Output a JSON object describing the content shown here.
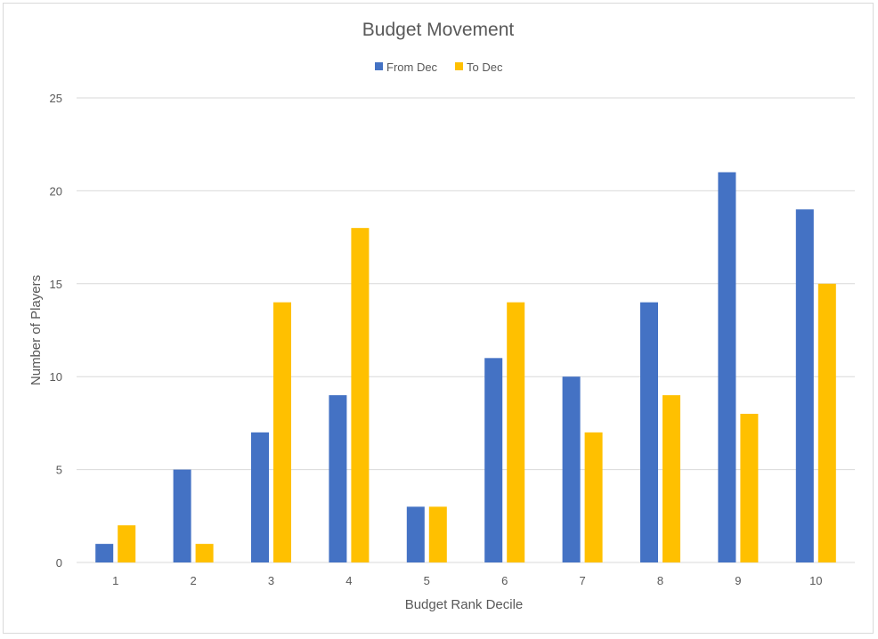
{
  "chart_data": {
    "type": "bar",
    "title": "Budget Movement",
    "xlabel": "Budget Rank Decile",
    "ylabel": "Number of Players",
    "categories": [
      "1",
      "2",
      "3",
      "4",
      "5",
      "6",
      "7",
      "8",
      "9",
      "10"
    ],
    "series": [
      {
        "name": "From Dec",
        "color": "#4472C4",
        "values": [
          1,
          5,
          7,
          9,
          3,
          11,
          10,
          14,
          21,
          19
        ]
      },
      {
        "name": "To Dec",
        "color": "#FFC000",
        "values": [
          2,
          1,
          14,
          18,
          3,
          14,
          7,
          9,
          8,
          15
        ]
      }
    ],
    "ylim": [
      0,
      25
    ],
    "yticks": [
      0,
      5,
      10,
      15,
      20,
      25
    ],
    "grid": true,
    "legend_position": "top"
  }
}
